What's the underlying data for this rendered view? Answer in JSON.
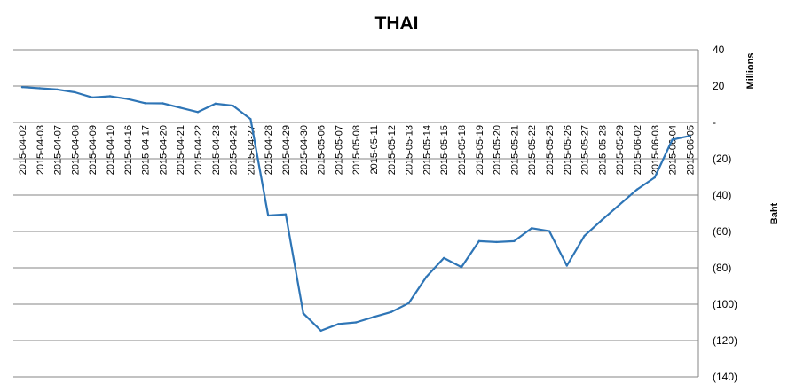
{
  "chart_data": {
    "type": "line",
    "title": "THAI",
    "y_unit_label": "Millions",
    "y_axis_title": "Baht",
    "ylim": [
      -140,
      40
    ],
    "y_ticks": [
      40,
      20,
      0,
      -20,
      -40,
      -60,
      -80,
      -100,
      -120,
      -140
    ],
    "y_tick_labels": [
      "40",
      "20",
      "-",
      "(20)",
      "(40)",
      "(60)",
      "(80)",
      "(100)",
      "(120)",
      "(140)"
    ],
    "grid": true,
    "legend": "none",
    "colors": {
      "line": "#2E75B6",
      "grid": "#868686",
      "text": "#000000"
    },
    "x": [
      "2015-04-02",
      "2015-04-03",
      "2015-04-07",
      "2015-04-08",
      "2015-04-09",
      "2015-04-10",
      "2015-04-16",
      "2015-04-17",
      "2015-04-20",
      "2015-04-21",
      "2015-04-22",
      "2015-04-23",
      "2015-04-24",
      "2015-04-27",
      "2015-04-28",
      "2015-04-29",
      "2015-04-30",
      "2015-05-06",
      "2015-05-07",
      "2015-05-08",
      "2015-05-11",
      "2015-05-12",
      "2015-05-13",
      "2015-05-14",
      "2015-05-15",
      "2015-05-18",
      "2015-05-19",
      "2015-05-20",
      "2015-05-21",
      "2015-05-22",
      "2015-05-25",
      "2015-05-26",
      "2015-05-27",
      "2015-05-28",
      "2015-05-29",
      "2015-06-02",
      "2015-06-03",
      "2015-06-04",
      "2015-06-05"
    ],
    "series": [
      {
        "values": [
          19.4,
          18.8,
          18.1,
          16.6,
          13.7,
          14.4,
          12.9,
          10.6,
          10.5,
          8.1,
          5.7,
          10.3,
          9.2,
          1.8,
          -51.2,
          -50.6,
          -105.0,
          -114.6,
          -110.9,
          -110.0,
          -107.0,
          -104.3,
          -99.4,
          -85.0,
          -74.6,
          -79.6,
          -65.3,
          -65.8,
          -65.3,
          -58.2,
          -59.8,
          -78.8,
          -62.4,
          -53.6,
          -45.2,
          -36.9,
          -30.3,
          -9.5,
          -7.4
        ]
      }
    ]
  }
}
